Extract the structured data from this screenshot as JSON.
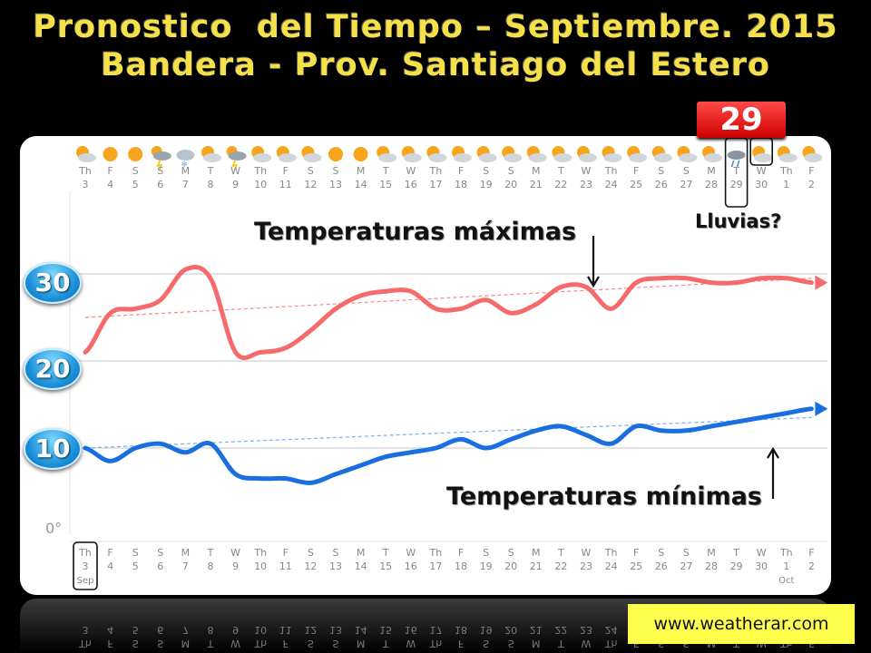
{
  "title": {
    "line1": "Pronostico  del Tiempo – Septiembre. 2015",
    "line2": "Bandera - Prov. Santiago del Estero"
  },
  "highlight_badge": "29",
  "annotations": {
    "max": "Temperaturas máximas",
    "min": "Temperaturas mínimas",
    "rain": "Lluvias?"
  },
  "y_badges": [
    "30",
    "20",
    "10"
  ],
  "zero_label": "0°",
  "source": "www.weatherar.com",
  "colors": {
    "max": "#f56b6b",
    "min": "#1a6fe0",
    "accent": "#f5e04a"
  },
  "chart_data": {
    "type": "line",
    "days": [
      "Th",
      "F",
      "S",
      "S",
      "M",
      "T",
      "W",
      "Th",
      "F",
      "S",
      "S",
      "M",
      "T",
      "W",
      "Th",
      "F",
      "S",
      "S",
      "M",
      "T",
      "W",
      "Th",
      "F",
      "S",
      "S",
      "M",
      "T",
      "W",
      "Th",
      "F"
    ],
    "dates": [
      "3",
      "4",
      "5",
      "6",
      "7",
      "8",
      "9",
      "10",
      "11",
      "12",
      "13",
      "14",
      "15",
      "16",
      "17",
      "18",
      "19",
      "20",
      "21",
      "22",
      "23",
      "24",
      "25",
      "26",
      "27",
      "28",
      "29",
      "30",
      "1",
      "2"
    ],
    "month_labels": [
      {
        "index": 0,
        "text": "Sep"
      },
      {
        "index": 28,
        "text": "Oct"
      }
    ],
    "icons": [
      "partly-sunny",
      "sunny",
      "sunny",
      "storm",
      "snow-cloud",
      "partly-sunny",
      "storm",
      "partly-sunny",
      "partly-sunny",
      "partly-sunny",
      "sunny",
      "sunny",
      "partly-sunny",
      "partly-sunny",
      "partly-sunny",
      "partly-sunny",
      "partly-sunny",
      "partly-sunny",
      "partly-sunny",
      "partly-sunny",
      "partly-sunny",
      "partly-sunny",
      "partly-sunny",
      "partly-sunny",
      "partly-sunny",
      "partly-sunny",
      "rain",
      "partly-sunny",
      "partly-sunny",
      "partly-sunny"
    ],
    "ylim": [
      0,
      35
    ],
    "series": [
      {
        "name": "Temperaturas máximas",
        "values": [
          21,
          25.5,
          26,
          27,
          30.5,
          29.5,
          21,
          21,
          21.5,
          23.5,
          26,
          27.5,
          28,
          28,
          26,
          26,
          27,
          25.5,
          26.5,
          28.5,
          28.5,
          26,
          29,
          29.5,
          29.5,
          29,
          29,
          29.5,
          29.5,
          29
        ]
      },
      {
        "name": "Temperaturas mínimas",
        "values": [
          10,
          8.5,
          10,
          10.5,
          9.5,
          10.5,
          7,
          6.5,
          6.5,
          6,
          7,
          8,
          9,
          9.5,
          10,
          11,
          10,
          11,
          12,
          12.5,
          11.5,
          10.5,
          12.5,
          12,
          12,
          12.5,
          13,
          13.5,
          14,
          14.5
        ]
      }
    ],
    "trend": [
      {
        "name": "max-trend",
        "from": 25,
        "to": 29.5
      },
      {
        "name": "min-trend",
        "from": 10,
        "to": 13.5
      }
    ]
  }
}
